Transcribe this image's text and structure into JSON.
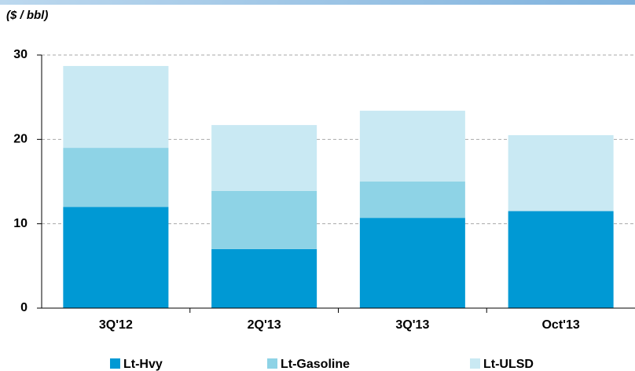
{
  "chart_data": {
    "type": "stacked_bar",
    "y_label": "($ / bbl)",
    "categories": [
      "3Q'12",
      "2Q'13",
      "3Q'13",
      "Oct'13"
    ],
    "series": [
      {
        "name": "Lt-Hvy",
        "color": "#0099d4",
        "values": [
          12.0,
          7.0,
          10.7,
          11.5
        ]
      },
      {
        "name": "Lt-Gasoline",
        "color": "#8ed3e6",
        "values": [
          7.0,
          6.9,
          4.3,
          0
        ]
      },
      {
        "name": "Lt-ULSD",
        "color": "#c9e9f3",
        "values": [
          9.7,
          7.8,
          8.4,
          9.0
        ]
      }
    ],
    "ylim": [
      0,
      30
    ],
    "yticks": [
      0,
      10,
      20,
      30
    ],
    "grid": true
  }
}
